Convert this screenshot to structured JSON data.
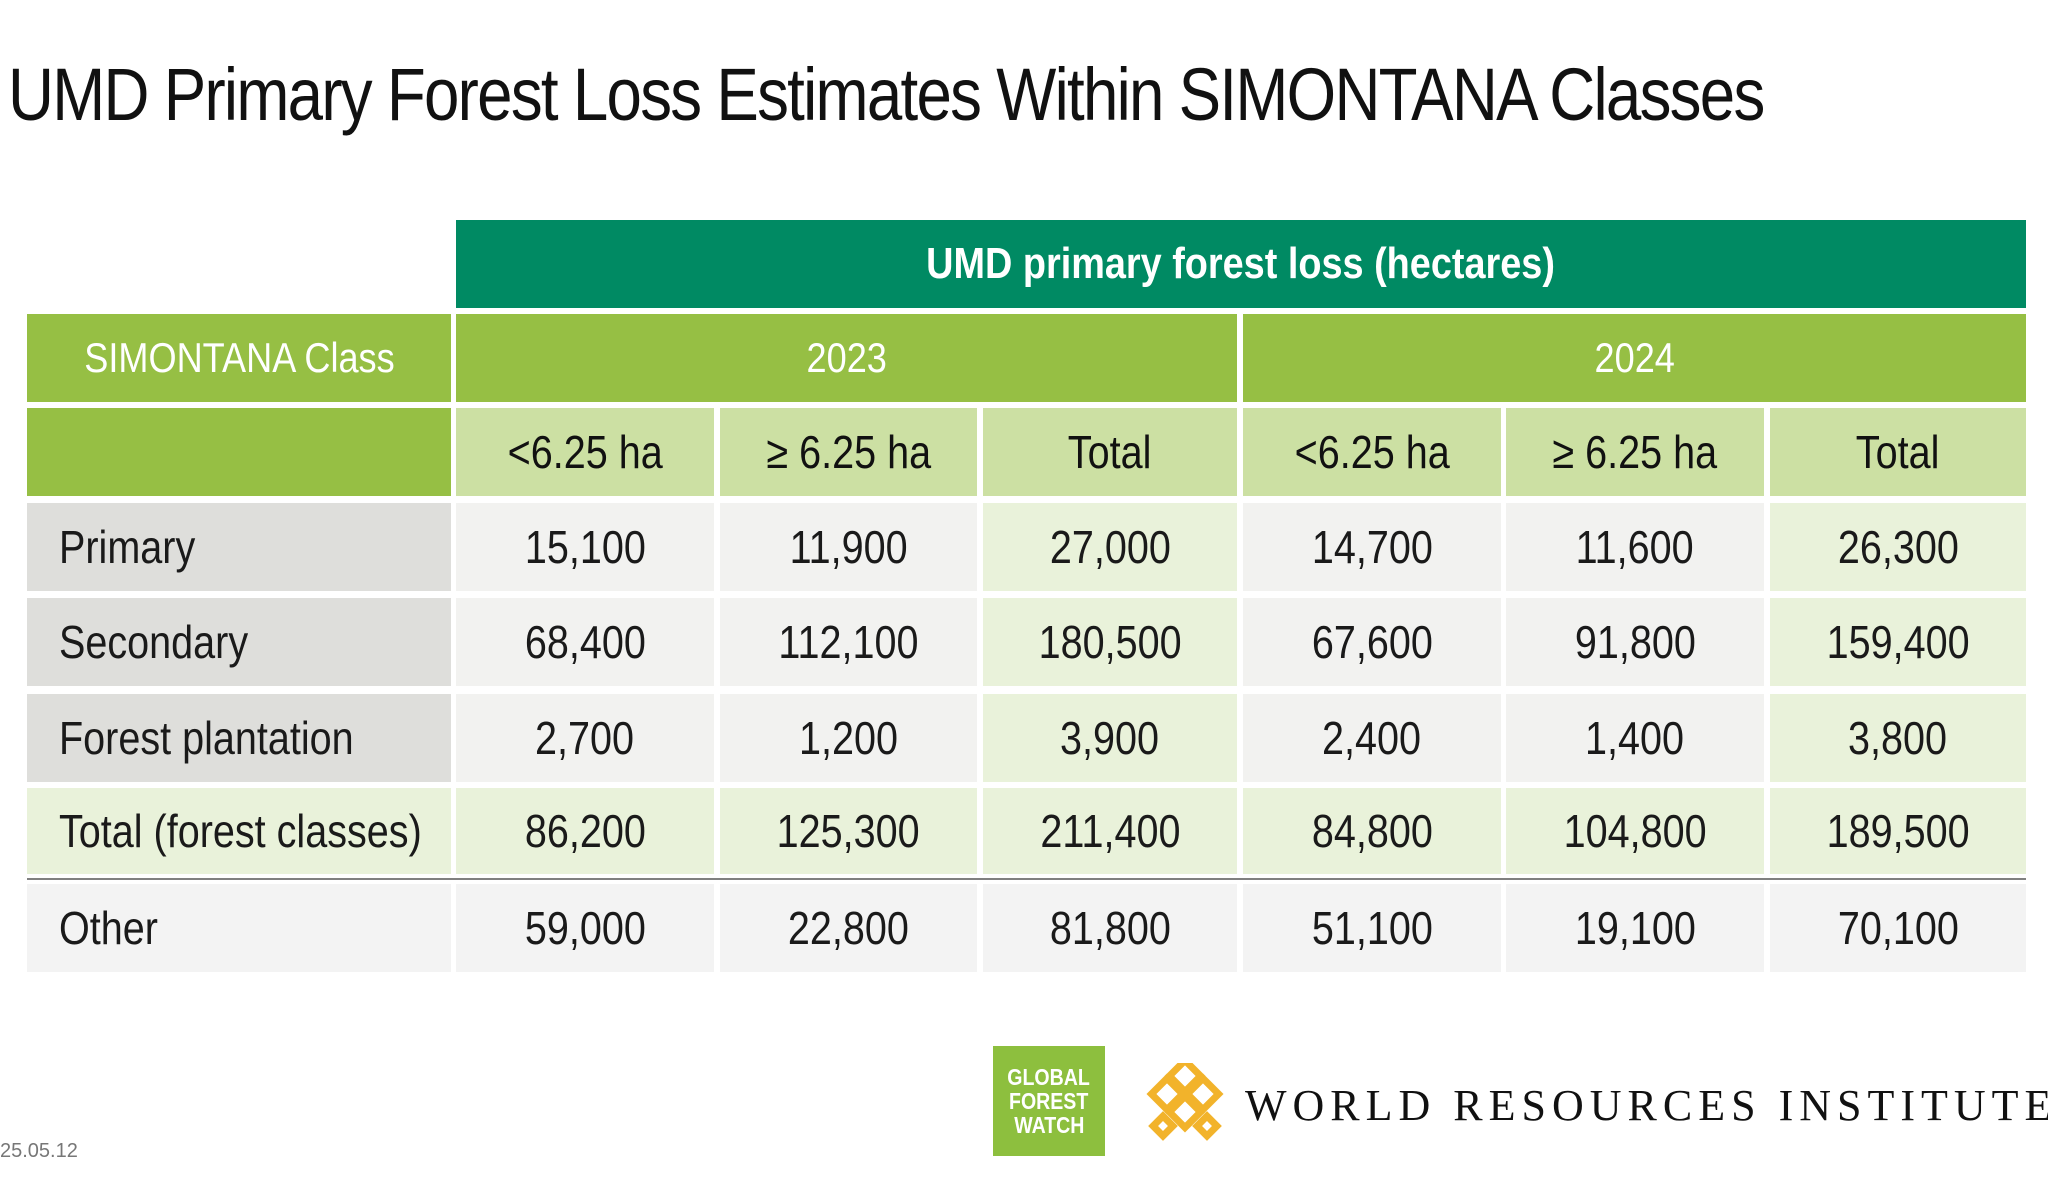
{
  "title": "UMD Primary Forest Loss Estimates Within SIMONTANA Classes",
  "table": {
    "group_header": "UMD primary forest loss (hectares)",
    "class_header": "SIMONTANA Class",
    "years": [
      "2023",
      "2024"
    ],
    "subheaders": [
      "<6.25 ha",
      "≥ 6.25 ha",
      "Total",
      "<6.25 ha",
      "≥ 6.25 ha",
      "Total"
    ],
    "rows": [
      {
        "label": "Primary",
        "values": [
          "15,100",
          "11,900",
          "27,000",
          "14,700",
          "11,600",
          "26,300"
        ]
      },
      {
        "label": "Secondary",
        "values": [
          "68,400",
          "112,100",
          "180,500",
          "67,600",
          "91,800",
          "159,400"
        ]
      },
      {
        "label": "Forest plantation",
        "values": [
          "2,700",
          "1,200",
          "3,900",
          "2,400",
          "1,400",
          "3,800"
        ]
      },
      {
        "label": "Total (forest classes)",
        "values": [
          "86,200",
          "125,300",
          "211,400",
          "84,800",
          "104,800",
          "189,500"
        ]
      },
      {
        "label": "Other",
        "values": [
          "59,000",
          "22,800",
          "81,800",
          "51,100",
          "19,100",
          "70,100"
        ]
      }
    ]
  },
  "footer": {
    "gfw_logo_lines": [
      "GLOBAL",
      "FOREST",
      "WATCH"
    ],
    "wri_logo_text": "WORLD RESOURCES INSTITUTE",
    "date": "25.05.12"
  },
  "colors": {
    "dark_green": "#008a63",
    "lime_green": "#96bf44",
    "light_green": "#cce0a3"
  }
}
